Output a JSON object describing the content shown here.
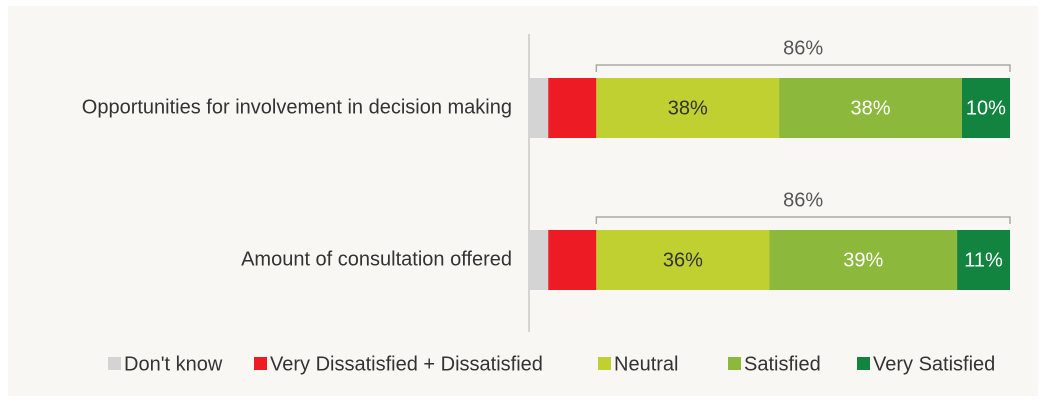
{
  "chart_data": {
    "type": "stacked_barh",
    "categories": [
      "Opportunities for involvement in decision making",
      "Amount of consultation offered"
    ],
    "series": [
      {
        "name": "Don't know",
        "color": "#d4d4d4",
        "values": [
          4,
          4
        ]
      },
      {
        "name": "Very Dissatisfied + Dissatisfied",
        "color": "#ed1c24",
        "values": [
          10,
          10
        ]
      },
      {
        "name": "Neutral",
        "color": "#bfd030",
        "label_color": "#333333",
        "values": [
          38,
          36
        ],
        "value_labels": [
          "38%",
          "36%"
        ]
      },
      {
        "name": "Satisfied",
        "color": "#8cb83c",
        "label_color": "#ffffff",
        "values": [
          38,
          39
        ],
        "value_labels": [
          "38%",
          "39%"
        ]
      },
      {
        "name": "Very Satisfied",
        "color": "#12843f",
        "label_color": "#ffffff",
        "values": [
          10,
          11
        ],
        "value_labels": [
          "10%",
          "11%"
        ]
      }
    ],
    "bracket_labels": [
      "86%",
      "86%"
    ],
    "xlim": [
      0,
      100
    ]
  }
}
